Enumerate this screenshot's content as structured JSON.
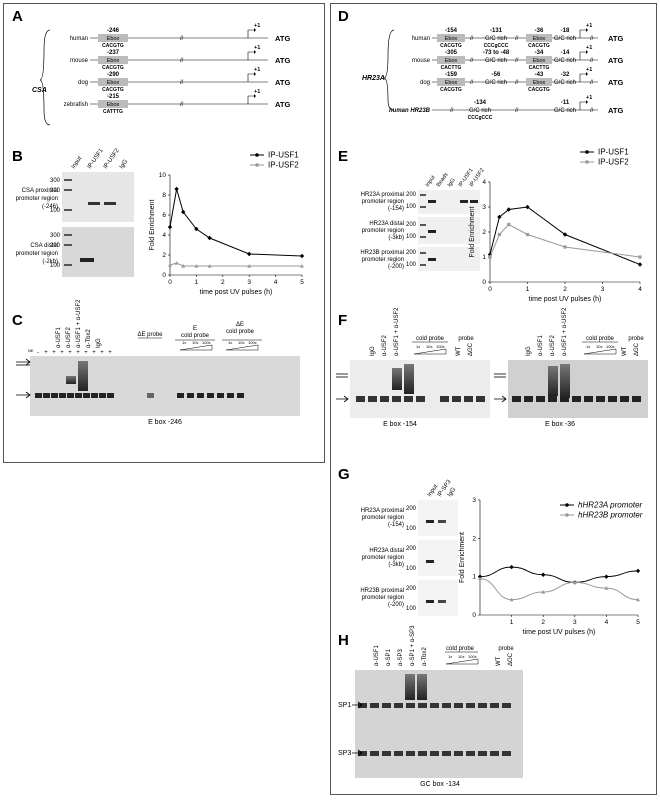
{
  "panels": {
    "A": {
      "label": "A",
      "group": "CSA",
      "rows": [
        {
          "species": "human",
          "pos": "-246",
          "box": "Ebox",
          "seq": "CACGTG"
        },
        {
          "species": "mouse",
          "pos": "-237",
          "box": "Ebox",
          "seq": "CACGTG"
        },
        {
          "species": "dog",
          "pos": "-290",
          "box": "Ebox",
          "seq": "CACGTG"
        },
        {
          "species": "zebrafish",
          "pos": "-215",
          "box": "Ebox",
          "seq": "CATTTG"
        }
      ],
      "tss": "+1",
      "atg": "ATG",
      "break": "//"
    },
    "B": {
      "label": "B",
      "gel_lanes": [
        "Input",
        "IP-USF1",
        "IP-USF2",
        "IgG"
      ],
      "regions": [
        "CSA proximal promoter region (-246)",
        "CSA distal promoter region (-2kb)"
      ],
      "markers": [
        "300",
        "200",
        "100"
      ],
      "legend": [
        "IP-USF1",
        "IP-USF2"
      ]
    },
    "C": {
      "label": "C",
      "lanes": [
        "α-USF1",
        "α-USF2",
        "α-USF1 + α-USF2",
        "α-Tbx2",
        "IgG"
      ],
      "ne": "NE",
      "plus": "+",
      "minus": "-",
      "de_probe": "ΔE probe",
      "e_cold": "E cold probe",
      "de_cold": "ΔE cold probe",
      "doses": [
        "1x",
        "10x",
        "100x"
      ],
      "caption": "E box -246"
    },
    "D": {
      "label": "D",
      "group": "HR23A",
      "human_b": "human HR23B",
      "rows": [
        {
          "species": "human",
          "p1": "-154",
          "b1": "Ebox",
          "s1": "CACGTG",
          "p2": "-131",
          "b2": "G/C rich",
          "s2": "CCCgCCC",
          "p3": "-36",
          "b3": "Ebox",
          "s3": "CACGTG",
          "p4": "-18",
          "b4": "G/C rich"
        },
        {
          "species": "mouse",
          "p1": "-305",
          "b1": "Ebox",
          "s1": "CACTTG",
          "p2": "-73 to -48",
          "b2": "G/C rich",
          "s2": "",
          "p3": "-34",
          "b3": "Ebox",
          "s3": "CACTTG",
          "p4": "-14",
          "b4": "G/C rich"
        },
        {
          "species": "dog",
          "p1": "-159",
          "b1": "Ebox",
          "s1": "CACGTG",
          "p2": "-56",
          "b2": "G/C rich",
          "s2": "",
          "p3": "-43",
          "b3": "Ebox",
          "s3": "CACGTG",
          "p4": "-32",
          "b4": "G/C rich"
        }
      ],
      "hr23b": {
        "p1": "-134",
        "b1": "G/C rich",
        "s1": "CCCgCCC",
        "p2": "-11",
        "b2": "G/C rich"
      },
      "tss": "+1",
      "atg": "ATG"
    },
    "E": {
      "label": "E",
      "gel_lanes": [
        "Input",
        "Beads",
        "IgG",
        "IP-USF1",
        "IP-USF2"
      ],
      "regions": [
        "HR23A proximal promoter region (-154)",
        "HR23A distal promoter region (-3kb)",
        "HR23B proximal promoter region (-200)"
      ],
      "markers": [
        "200",
        "100"
      ],
      "legend": [
        "IP-USF1",
        "IP-USF2"
      ]
    },
    "F": {
      "label": "F",
      "lanes": [
        "IgG",
        "α-USF2",
        "α-USF1 + α-USF2"
      ],
      "lanes2": [
        "IgG",
        "α-USF1",
        "α-USF2",
        "α-USF1 + α-USF2"
      ],
      "cold_probe": "cold probe",
      "doses": [
        "1x",
        "10x",
        "100x"
      ],
      "wt": "WT",
      "probe": "probe",
      "dgc": "ΔGC",
      "caption1": "E box -154",
      "caption2": "E box -36"
    },
    "G": {
      "label": "G",
      "gel_lanes": [
        "Input",
        "IP-SP3",
        "IgG"
      ],
      "regions": [
        "HR23A proximal promoter region (-154)",
        "HR23A distal promoter region (-3kb)",
        "HR23B proximal promoter region (-200)"
      ],
      "markers": [
        "200",
        "100"
      ],
      "legend": [
        "hHR23A promoter",
        "hHR23B promoter"
      ]
    },
    "H": {
      "label": "H",
      "lanes": [
        "α-USF1",
        "α-SP1",
        "α-SP3",
        "α-SP1 + α-SP3",
        "α-Tbx2"
      ],
      "cold_probe": "cold probe",
      "doses": [
        "1x",
        "10x",
        "100x"
      ],
      "wt": "WT",
      "probe": "probe",
      "dgc": "ΔGC",
      "sp1": "SP1",
      "sp3": "SP3",
      "caption": "GC box -134"
    }
  },
  "chart_data": [
    {
      "type": "line",
      "panel": "B",
      "ylabel": "Fold Enrichment",
      "xlabel": "time post UV pulses (h)",
      "xlim": [
        0,
        5
      ],
      "ylim": [
        0,
        10
      ],
      "xticks": [
        0,
        1,
        2,
        3,
        4,
        5
      ],
      "yticks": [
        0,
        2,
        4,
        6,
        8,
        10
      ],
      "series": [
        {
          "name": "IP-USF1",
          "color": "#000000",
          "x": [
            0,
            0.25,
            0.5,
            1,
            1.5,
            3,
            5
          ],
          "y": [
            4.8,
            8.6,
            6.3,
            4.6,
            3.7,
            2.1,
            1.9
          ],
          "marker": "diamond"
        },
        {
          "name": "IP-USF2",
          "color": "#999999",
          "x": [
            0,
            0.25,
            0.5,
            1,
            1.5,
            3,
            5
          ],
          "y": [
            1.0,
            1.2,
            0.9,
            0.9,
            0.9,
            0.9,
            0.9
          ],
          "marker": "triangle"
        }
      ]
    },
    {
      "type": "line",
      "panel": "E",
      "ylabel": "Fold Enrichment",
      "xlabel": "time post UV pulses (h)",
      "xlim": [
        0,
        4
      ],
      "ylim": [
        0,
        4
      ],
      "xticks": [
        0,
        1,
        2,
        3,
        4
      ],
      "yticks": [
        0,
        1,
        2,
        3,
        4
      ],
      "series": [
        {
          "name": "IP-USF1",
          "color": "#000000",
          "x": [
            0,
            0.25,
            0.5,
            1,
            2,
            4
          ],
          "y": [
            1.1,
            2.6,
            2.9,
            3.0,
            1.9,
            0.7
          ],
          "marker": "diamond"
        },
        {
          "name": "IP-USF2",
          "color": "#999999",
          "x": [
            0,
            0.25,
            0.5,
            1,
            2,
            4
          ],
          "y": [
            1.0,
            1.9,
            2.3,
            1.9,
            1.4,
            1.0
          ],
          "marker": "square"
        }
      ]
    },
    {
      "type": "line",
      "panel": "G",
      "ylabel": "Fold Enrichment",
      "xlabel": "time post UV pulses (h)",
      "xlim": [
        0,
        5
      ],
      "ylim": [
        0,
        3
      ],
      "xticks": [
        1,
        2,
        3,
        4,
        5
      ],
      "yticks": [
        0,
        1,
        2,
        3
      ],
      "series": [
        {
          "name": "hHR23A promoter",
          "color": "#000000",
          "x": [
            0,
            1,
            2,
            3,
            4,
            5
          ],
          "y": [
            1.0,
            1.25,
            1.05,
            0.85,
            1.0,
            1.15
          ],
          "marker": "diamond"
        },
        {
          "name": "hHR23B promoter",
          "color": "#999999",
          "x": [
            0,
            1,
            2,
            3,
            4,
            5
          ],
          "y": [
            0.95,
            0.4,
            0.6,
            0.85,
            0.7,
            0.4
          ],
          "marker": "triangle"
        }
      ]
    }
  ]
}
